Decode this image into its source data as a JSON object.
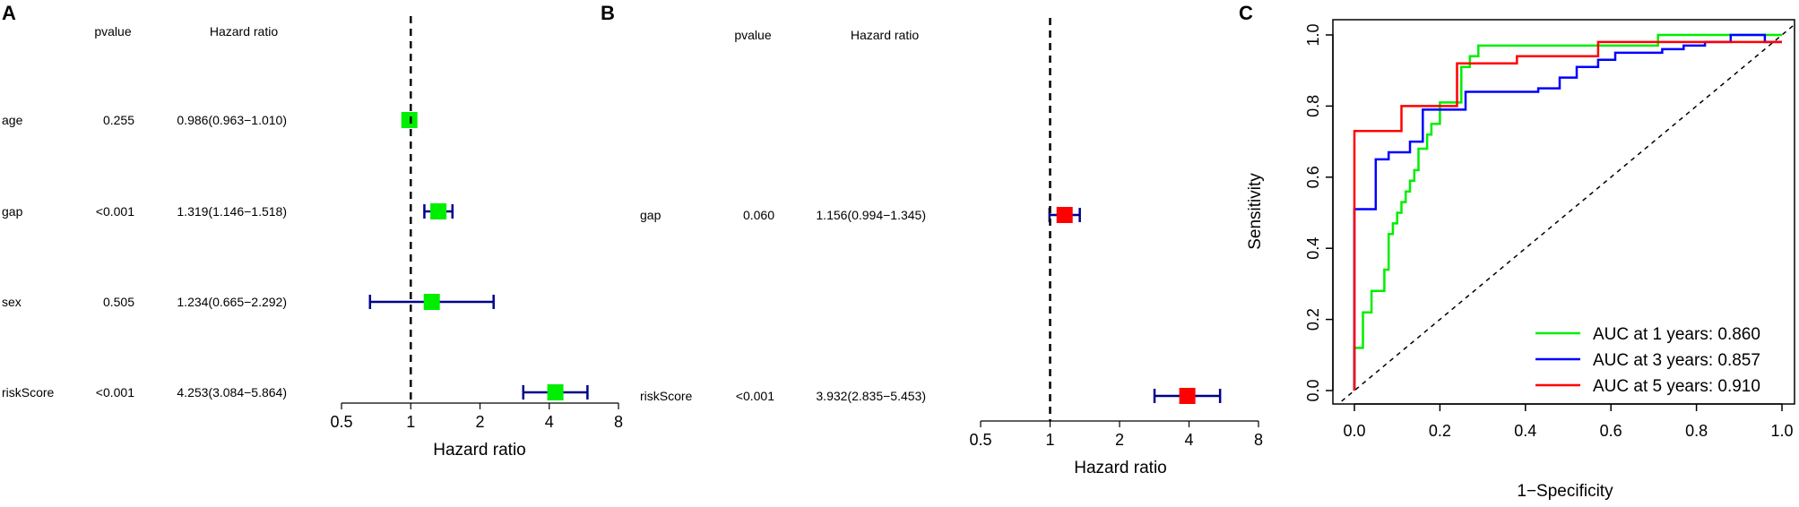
{
  "chart_data": [
    {
      "type": "forest",
      "panel": "A",
      "headers": {
        "pvalue": "pvalue",
        "hr": "Hazard ratio"
      },
      "rows": [
        {
          "name": "age",
          "pvalue": "0.255",
          "hr_text": "0.986(0.963−1.010)",
          "hr": 0.986,
          "low": 0.963,
          "high": 1.01
        },
        {
          "name": "gap",
          "pvalue": "<0.001",
          "hr_text": "1.319(1.146−1.518)",
          "hr": 1.319,
          "low": 1.146,
          "high": 1.518
        },
        {
          "name": "sex",
          "pvalue": "0.505",
          "hr_text": "1.234(0.665−2.292)",
          "hr": 1.234,
          "low": 0.665,
          "high": 2.292
        },
        {
          "name": "riskScore",
          "pvalue": "<0.001",
          "hr_text": "4.253(3.084−5.864)",
          "hr": 4.253,
          "low": 3.084,
          "high": 5.864
        }
      ],
      "xlabel": "Hazard ratio",
      "x_scale": "log2",
      "ticks": [
        0.5,
        1,
        2,
        4,
        8
      ],
      "tick_labels": [
        "0.5",
        "1",
        "2",
        "4",
        "8"
      ],
      "reference": 1,
      "marker_color": "#00ee00",
      "ci_color": "#00008b"
    },
    {
      "type": "forest",
      "panel": "B",
      "headers": {
        "pvalue": "pvalue",
        "hr": "Hazard ratio"
      },
      "rows": [
        {
          "name": "gap",
          "pvalue": "0.060",
          "hr_text": "1.156(0.994−1.345)",
          "hr": 1.156,
          "low": 0.994,
          "high": 1.345
        },
        {
          "name": "riskScore",
          "pvalue": "<0.001",
          "hr_text": "3.932(2.835−5.453)",
          "hr": 3.932,
          "low": 2.835,
          "high": 5.453
        }
      ],
      "xlabel": "Hazard ratio",
      "x_scale": "log2",
      "ticks": [
        0.5,
        1,
        2,
        4,
        8
      ],
      "tick_labels": [
        "0.5",
        "1",
        "2",
        "4",
        "8"
      ],
      "reference": 1,
      "marker_color": "#ff0000",
      "ci_color": "#00008b"
    },
    {
      "type": "line",
      "panel": "C",
      "xlabel": "1−Specificity",
      "ylabel": "Sensitivity",
      "xlim": [
        0,
        1
      ],
      "ylim": [
        0,
        1
      ],
      "ticks": [
        0.0,
        0.2,
        0.4,
        0.6,
        0.8,
        1.0
      ],
      "tick_labels": [
        "0.0",
        "0.2",
        "0.4",
        "0.6",
        "0.8",
        "1.0"
      ],
      "legend_position": "bottom-right",
      "diagonal": true,
      "series": [
        {
          "name": "AUC at 1 years: 0.860",
          "color": "#00ee00",
          "x": [
            0,
            0,
            0.02,
            0.02,
            0.04,
            0.04,
            0.07,
            0.07,
            0.08,
            0.08,
            0.09,
            0.09,
            0.1,
            0.1,
            0.11,
            0.11,
            0.12,
            0.12,
            0.13,
            0.13,
            0.14,
            0.14,
            0.15,
            0.15,
            0.17,
            0.17,
            0.18,
            0.18,
            0.2,
            0.2,
            0.25,
            0.25,
            0.27,
            0.27,
            0.29,
            0.29,
            0.33,
            0.33,
            0.71,
            0.71,
            1.0
          ],
          "y": [
            0,
            0.12,
            0.12,
            0.22,
            0.22,
            0.28,
            0.28,
            0.34,
            0.34,
            0.44,
            0.44,
            0.47,
            0.47,
            0.5,
            0.5,
            0.53,
            0.53,
            0.56,
            0.56,
            0.59,
            0.59,
            0.62,
            0.62,
            0.68,
            0.68,
            0.72,
            0.72,
            0.75,
            0.75,
            0.81,
            0.81,
            0.91,
            0.91,
            0.94,
            0.94,
            0.97,
            0.97,
            0.97,
            0.97,
            1.0,
            1.0
          ]
        },
        {
          "name": "AUC at 3 years: 0.857",
          "color": "#0000ff",
          "x": [
            0,
            0,
            0.05,
            0.05,
            0.08,
            0.08,
            0.13,
            0.13,
            0.16,
            0.16,
            0.26,
            0.26,
            0.43,
            0.43,
            0.48,
            0.48,
            0.52,
            0.52,
            0.57,
            0.57,
            0.61,
            0.61,
            0.67,
            0.67,
            0.72,
            0.72,
            0.77,
            0.77,
            0.82,
            0.82,
            0.88,
            0.88,
            0.96,
            0.96,
            1.0
          ],
          "y": [
            0,
            0.51,
            0.51,
            0.65,
            0.65,
            0.67,
            0.67,
            0.7,
            0.7,
            0.79,
            0.79,
            0.84,
            0.84,
            0.85,
            0.85,
            0.88,
            0.88,
            0.91,
            0.91,
            0.93,
            0.93,
            0.95,
            0.95,
            0.95,
            0.95,
            0.96,
            0.96,
            0.97,
            0.97,
            0.98,
            0.98,
            1.0,
            1.0,
            0.98,
            0.98
          ]
        },
        {
          "name": "AUC at 5 years: 0.910",
          "color": "#ff0000",
          "x": [
            0,
            0,
            0.11,
            0.11,
            0.24,
            0.24,
            0.38,
            0.38,
            0.57,
            0.57,
            1.0
          ],
          "y": [
            0,
            0.73,
            0.73,
            0.8,
            0.8,
            0.92,
            0.92,
            0.94,
            0.94,
            0.98,
            0.98
          ]
        }
      ]
    }
  ]
}
